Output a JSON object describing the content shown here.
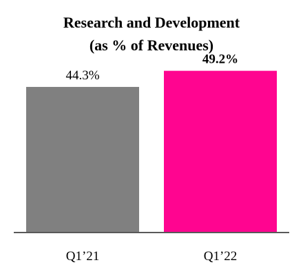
{
  "chart_data": {
    "type": "bar",
    "title_lines": [
      "Research and Development",
      "(as % of Revenues)"
    ],
    "categories": [
      "Q1’21",
      "Q1’22"
    ],
    "values": [
      44.3,
      49.2
    ],
    "data_labels": [
      "44.3%",
      "49.2%"
    ],
    "data_label_bold": [
      false,
      true
    ],
    "colors": [
      "#808080",
      "#ff0590"
    ],
    "axis_color": "#595959",
    "ylim": [
      0,
      50
    ],
    "grid": false,
    "legend": "none",
    "xlabel": "",
    "ylabel": ""
  }
}
